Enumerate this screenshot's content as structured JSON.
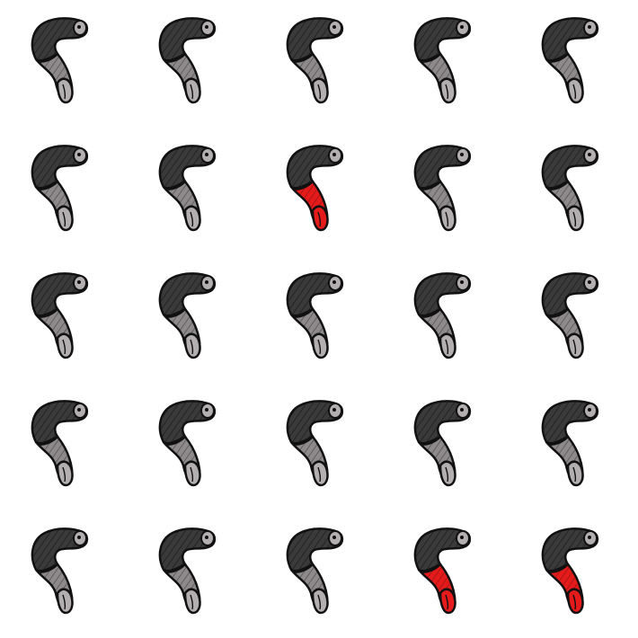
{
  "grid": {
    "rows": 5,
    "cols": 5
  },
  "colors": {
    "background": "#ffffff",
    "outline": "#111111",
    "body_dark": "#3a3a3a",
    "body_gray": "#8e8a8c",
    "tail_gray": "#b3aeb0",
    "highlight_red": "#e51a1a"
  },
  "item_icon": "worm-icon",
  "highlighted_cells": [
    {
      "row": 2,
      "col": 3
    },
    {
      "row": 5,
      "col": 4
    },
    {
      "row": 5,
      "col": 5
    }
  ]
}
